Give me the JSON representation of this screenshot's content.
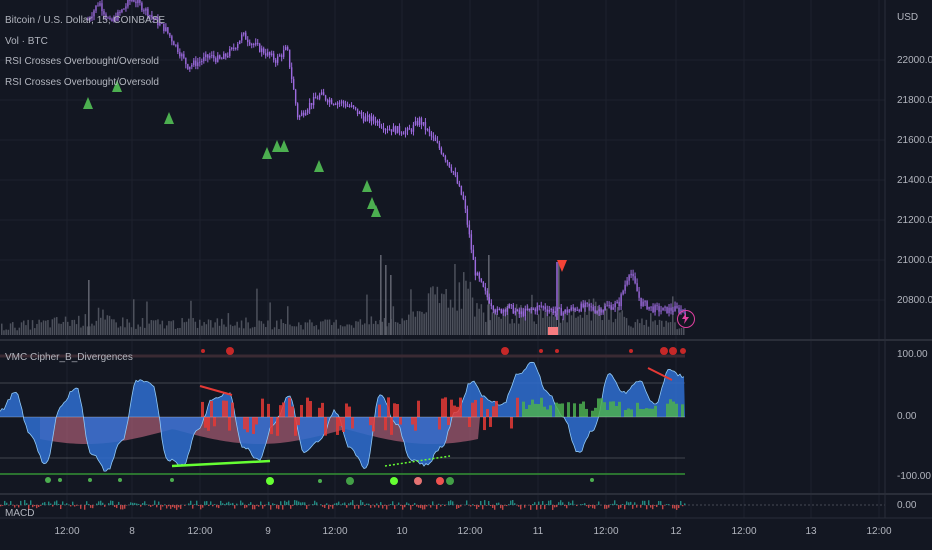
{
  "header": {
    "symbol_line": "Bitcoin / U.S. Dollar, 15, COINBASE",
    "indicators": [
      "Vol · BTC",
      "RSI Crosses Overbought/Oversold",
      "RSI Crosses Overbought/Oversold"
    ]
  },
  "price_axis": {
    "currency": "USD",
    "ticks": [
      "22000.00",
      "21800.00",
      "21600.00",
      "21400.00",
      "21200.00",
      "21000.00",
      "20800.00"
    ]
  },
  "oscillator_pane": {
    "title": "VMC Cipher_B_Divergences",
    "ticks": [
      "100.00",
      "0.00",
      "-100.00"
    ]
  },
  "macd_pane": {
    "title": "MACD",
    "ticks": [
      "0.00"
    ]
  },
  "time_axis": {
    "ticks": [
      "12:00",
      "8",
      "12:00",
      "9",
      "12:00",
      "10",
      "12:00",
      "11",
      "12:00",
      "12",
      "12:00",
      "13",
      "12:00"
    ]
  },
  "colors": {
    "background": "#131722",
    "candle": "#9c6ade",
    "volume": "#5d606b",
    "wave_blue": "#2f6fd1",
    "wave_red": "#e53935",
    "wave_green": "#4caf50",
    "mf_area": "#a05a70",
    "signal_up": "#4caf50",
    "signal_down": "#f44336"
  },
  "chart_data": [
    {
      "type": "candlestick",
      "title": "Bitcoin / U.S. Dollar, 15, COINBASE",
      "ylabel": "USD",
      "ylim": [
        20650,
        22300
      ],
      "x_ticks": [
        "12:00",
        "8",
        "12:00",
        "9",
        "12:00",
        "10",
        "12:00",
        "11",
        "12:00",
        "12",
        "12:00",
        "13",
        "12:00"
      ],
      "series": [
        {
          "name": "close",
          "x": [
            0,
            0.08,
            0.16,
            0.24,
            0.32,
            0.4,
            0.48,
            0.56,
            0.64,
            0.72,
            0.8,
            0.88,
            0.96,
            1.04,
            1.12,
            1.2,
            1.28,
            1.36,
            1.44,
            1.52,
            1.6,
            1.68,
            1.76,
            1.84,
            1.92,
            2.0,
            2.08,
            2.16,
            2.24,
            2.32,
            2.4,
            2.48,
            2.56,
            2.64,
            2.72,
            2.8,
            2.88,
            2.96,
            3.04,
            3.12,
            3.2,
            3.28,
            3.36,
            3.44,
            3.52,
            3.6,
            3.68,
            3.76,
            3.84,
            3.92,
            4.0,
            4.08,
            4.16,
            4.24,
            4.32
          ],
          "values": [
            22200,
            22290,
            22180,
            22240,
            22310,
            22260,
            22200,
            22150,
            22060,
            21960,
            21980,
            22010,
            21990,
            22040,
            22120,
            22070,
            22030,
            21990,
            22050,
            21690,
            21760,
            21810,
            21780,
            21770,
            21740,
            21690,
            21680,
            21640,
            21630,
            21620,
            21680,
            21600,
            21520,
            21420,
            21260,
            20900,
            20780,
            20690,
            20720,
            20680,
            20700,
            20720,
            20700,
            20690,
            20710,
            20720,
            20700,
            20720,
            20730,
            20910,
            20740,
            20710,
            20700,
            20705,
            20700
          ]
        },
        {
          "name": "Vol · BTC",
          "x": [
            0,
            0.5,
            1.0,
            1.5,
            2.0,
            2.5,
            2.75,
            2.9,
            3.0,
            3.5,
            3.8,
            4.0,
            4.3
          ],
          "values": [
            1,
            1.8,
            1.4,
            1.5,
            1.3,
            1.7,
            4.5,
            6.2,
            3.0,
            2.2,
            3.5,
            1.4,
            1.2
          ]
        }
      ],
      "annotations": [
        {
          "type": "marker",
          "label": "up",
          "count": 12,
          "color": "#4caf50"
        },
        {
          "type": "marker",
          "label": "down",
          "count": 1,
          "color": "#f44336"
        }
      ]
    },
    {
      "type": "area",
      "title": "VMC Cipher_B_Divergences",
      "ylim": [
        -130,
        130
      ],
      "y_ticks": [
        100,
        0,
        -100
      ],
      "series": [
        {
          "name": "wave",
          "x": [
            0,
            0.1,
            0.2,
            0.3,
            0.4,
            0.5,
            0.6,
            0.7,
            0.8,
            0.9,
            1.0,
            1.1,
            1.2,
            1.3,
            1.4,
            1.5,
            1.6,
            1.7,
            1.8,
            1.9,
            2.0,
            2.1,
            2.2,
            2.3,
            2.4,
            2.5,
            2.6,
            2.7,
            2.8,
            2.9,
            3.0,
            3.1,
            3.2,
            3.3,
            3.4,
            3.5,
            3.6,
            3.7,
            3.8,
            3.9,
            4.0,
            4.1,
            4.2,
            4.3,
            4.4,
            4.5
          ],
          "values": [
            10,
            40,
            -30,
            -80,
            20,
            50,
            -60,
            -90,
            -40,
            60,
            55,
            -70,
            -80,
            -20,
            30,
            40,
            -50,
            -70,
            -10,
            35,
            -60,
            -40,
            10,
            -50,
            -85,
            40,
            -10,
            -70,
            -80,
            -50,
            10,
            60,
            30,
            20,
            70,
            90,
            40,
            0,
            -60,
            -20,
            70,
            40,
            60,
            20,
            80,
            65
          ]
        }
      ]
    },
    {
      "type": "bar",
      "title": "MACD",
      "y_ticks": [
        0
      ],
      "series": [
        {
          "name": "histogram",
          "x": [
            0,
            4.5
          ],
          "values": [
            0,
            0
          ]
        }
      ]
    }
  ]
}
